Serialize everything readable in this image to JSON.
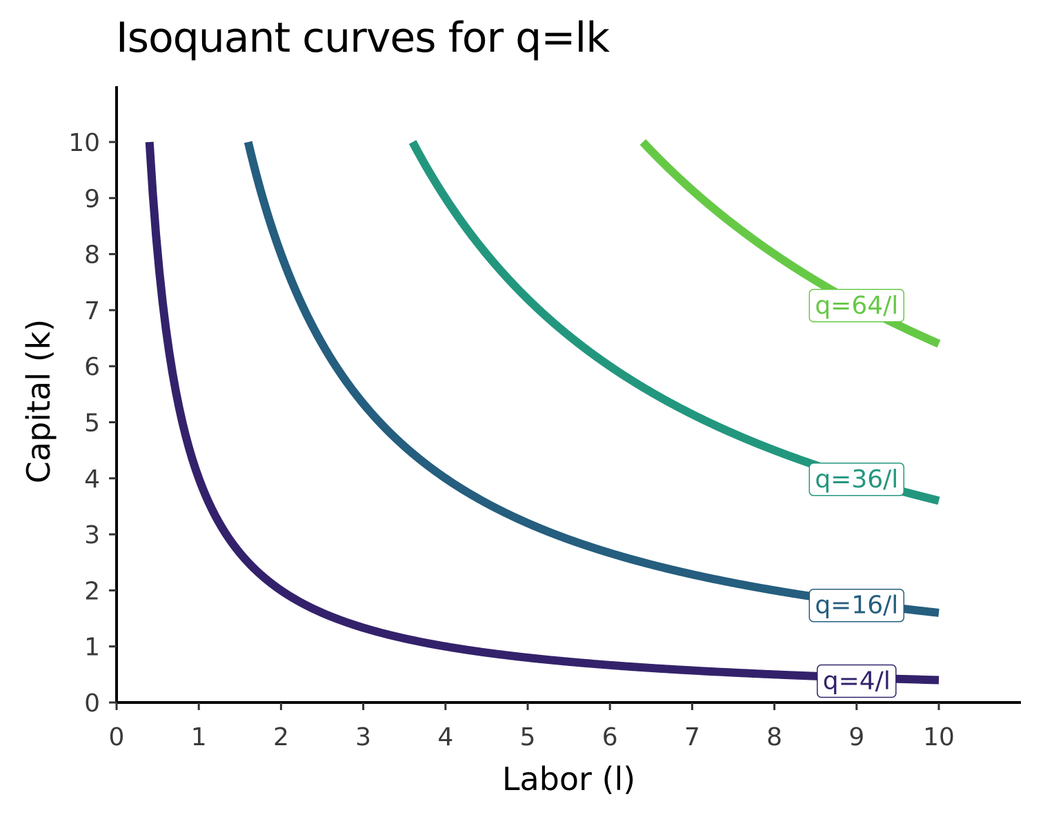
{
  "chart_data": {
    "type": "line",
    "title": "Isoquant curves for q=lk",
    "xlabel": "Labor (l)",
    "ylabel": "Capital (k)",
    "xlim": [
      0,
      11
    ],
    "ylim": [
      0,
      11
    ],
    "x_ticks": [
      0,
      1,
      2,
      3,
      4,
      5,
      6,
      7,
      8,
      9,
      10
    ],
    "y_ticks": [
      0,
      1,
      2,
      3,
      4,
      5,
      6,
      7,
      8,
      9,
      10
    ],
    "grid": false,
    "series": [
      {
        "q": 4,
        "label": "q=4/l",
        "x_start": 0.4,
        "x_end": 10,
        "color": "#33226b",
        "label_x": 9.0,
        "label_y": 0.4
      },
      {
        "q": 16,
        "label": "q=16/l",
        "x_start": 1.6,
        "x_end": 10,
        "color": "#255e7e",
        "label_x": 9.0,
        "label_y": 1.75
      },
      {
        "q": 36,
        "label": "q=36/l",
        "x_start": 3.6,
        "x_end": 10,
        "color": "#23977e",
        "label_x": 9.0,
        "label_y": 4.0
      },
      {
        "q": 64,
        "label": "q=64/l",
        "x_start": 6.4,
        "x_end": 10,
        "color": "#66c946",
        "label_x": 9.0,
        "label_y": 7.1
      }
    ]
  }
}
